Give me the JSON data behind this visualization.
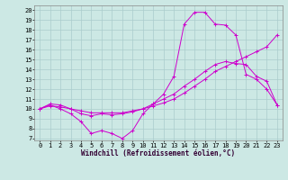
{
  "xlabel": "Windchill (Refroidissement éolien,°C)",
  "bg_color": "#cce8e4",
  "grid_color": "#aacccc",
  "line_color": "#cc00cc",
  "xlim": [
    -0.5,
    23.5
  ],
  "ylim": [
    6.8,
    20.5
  ],
  "xticks": [
    0,
    1,
    2,
    3,
    4,
    5,
    6,
    7,
    8,
    9,
    10,
    11,
    12,
    13,
    14,
    15,
    16,
    17,
    18,
    19,
    20,
    21,
    22,
    23
  ],
  "yticks": [
    7,
    8,
    9,
    10,
    11,
    12,
    13,
    14,
    15,
    16,
    17,
    18,
    19,
    20
  ],
  "line1_x": [
    0,
    1,
    2,
    3,
    4,
    5,
    6,
    7,
    8,
    9,
    10,
    11,
    12,
    13,
    14,
    15,
    16,
    17,
    18,
    19,
    20,
    21,
    22,
    23
  ],
  "line1_y": [
    10.0,
    10.4,
    10.0,
    9.5,
    8.7,
    7.5,
    7.8,
    7.5,
    7.0,
    7.8,
    9.5,
    10.5,
    11.5,
    13.3,
    18.6,
    19.8,
    19.8,
    18.6,
    18.5,
    17.5,
    13.5,
    13.0,
    12.0,
    10.4
  ],
  "line2_x": [
    0,
    1,
    2,
    3,
    4,
    5,
    6,
    7,
    8,
    9,
    10,
    11,
    12,
    13,
    14,
    15,
    16,
    17,
    18,
    19,
    20,
    21,
    22,
    23
  ],
  "line2_y": [
    10.0,
    10.5,
    10.4,
    10.0,
    9.5,
    9.3,
    9.5,
    9.4,
    9.5,
    9.7,
    10.0,
    10.5,
    11.0,
    11.5,
    12.3,
    13.0,
    13.8,
    14.5,
    14.8,
    14.6,
    14.5,
    13.3,
    12.8,
    10.4
  ],
  "line3_x": [
    0,
    1,
    2,
    3,
    4,
    5,
    6,
    7,
    8,
    9,
    10,
    11,
    12,
    13,
    14,
    15,
    16,
    17,
    18,
    19,
    20,
    21,
    22,
    23
  ],
  "line3_y": [
    10.0,
    10.3,
    10.2,
    10.0,
    9.8,
    9.6,
    9.6,
    9.6,
    9.6,
    9.8,
    10.0,
    10.3,
    10.6,
    11.0,
    11.6,
    12.3,
    13.0,
    13.8,
    14.3,
    14.8,
    15.3,
    15.8,
    16.3,
    17.5
  ],
  "marker": "+",
  "tick_fontsize": 5.0,
  "xlabel_fontsize": 5.5
}
